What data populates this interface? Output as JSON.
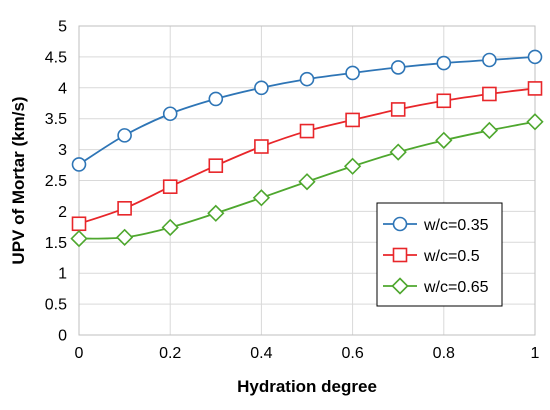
{
  "chart_data": {
    "type": "line",
    "xlabel": "Hydration degree",
    "ylabel": "UPV of Mortar (km/s)",
    "xlim": [
      0,
      1
    ],
    "ylim": [
      0,
      5
    ],
    "x_ticks": [
      "0",
      "0.2",
      "0.4",
      "0.6",
      "0.8",
      "1"
    ],
    "y_ticks": [
      "0",
      "0.5",
      "1",
      "1.5",
      "2",
      "2.5",
      "3",
      "3.5",
      "4",
      "4.5",
      "5"
    ],
    "grid": true,
    "legend_position": "bottom-right",
    "series": [
      {
        "name": "w/c=0.35",
        "marker": "circle",
        "color": "#2e75b6",
        "x": [
          0,
          0.1,
          0.2,
          0.3,
          0.4,
          0.5,
          0.6,
          0.7,
          0.8,
          0.9,
          1.0
        ],
        "y": [
          2.76,
          3.23,
          3.58,
          3.82,
          4.0,
          4.14,
          4.24,
          4.33,
          4.4,
          4.45,
          4.5
        ]
      },
      {
        "name": "w/c=0.5",
        "marker": "square",
        "color": "#e8262a",
        "x": [
          0,
          0.1,
          0.2,
          0.3,
          0.4,
          0.5,
          0.6,
          0.7,
          0.8,
          0.9,
          1.0
        ],
        "y": [
          1.8,
          2.05,
          2.4,
          2.74,
          3.05,
          3.3,
          3.48,
          3.65,
          3.79,
          3.9,
          3.99
        ]
      },
      {
        "name": "w/c=0.65",
        "marker": "diamond",
        "color": "#4ea72e",
        "x": [
          0,
          0.1,
          0.2,
          0.3,
          0.4,
          0.5,
          0.6,
          0.7,
          0.8,
          0.9,
          1.0
        ],
        "y": [
          1.56,
          1.58,
          1.74,
          1.97,
          2.22,
          2.48,
          2.73,
          2.96,
          3.15,
          3.31,
          3.45
        ]
      }
    ]
  }
}
